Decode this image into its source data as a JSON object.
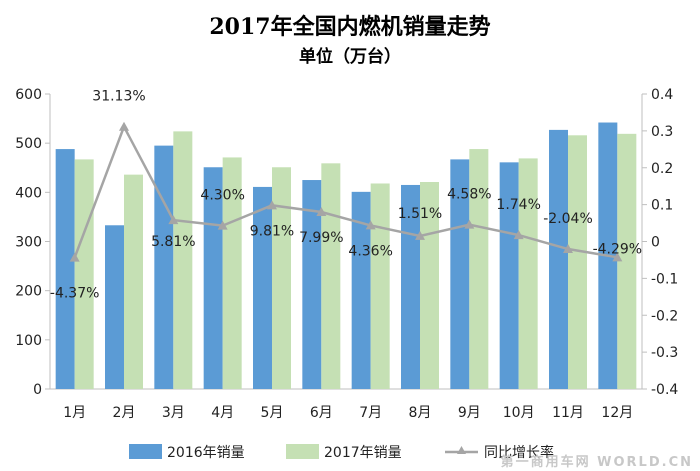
{
  "chart_data": {
    "type": "bar",
    "title": "2017年全国内燃机销量走势",
    "subtitle": "单位（万台）",
    "categories": [
      "1月",
      "2月",
      "3月",
      "4月",
      "5月",
      "6月",
      "7月",
      "8月",
      "9月",
      "10月",
      "11月",
      "12月"
    ],
    "series": [
      {
        "name": "2016年销量",
        "type": "bar",
        "color": "#5b9bd5",
        "values": [
          488,
          333,
          495,
          451,
          411,
          425,
          401,
          415,
          467,
          461,
          527,
          542
        ]
      },
      {
        "name": "2017年销量",
        "type": "bar",
        "color": "#c5e0b4",
        "values": [
          467,
          436,
          524,
          471,
          451,
          459,
          418,
          421,
          488,
          469,
          516,
          519
        ]
      },
      {
        "name": "同比增长率",
        "type": "line",
        "axis": "right",
        "color": "#a5a5a5",
        "values": [
          -0.0437,
          0.3113,
          0.0581,
          0.043,
          0.0981,
          0.0799,
          0.0436,
          0.0151,
          0.0458,
          0.0174,
          -0.0204,
          -0.0429
        ],
        "labels": [
          "-4.37%",
          "31.13%",
          "5.81%",
          "4.30%",
          "9.81%",
          "7.99%",
          "4.36%",
          "1.51%",
          "4.58%",
          "1.74%",
          "-2.04%",
          "-4.29%"
        ]
      }
    ],
    "ylim": [
      0,
      600
    ],
    "yticks": [
      "0",
      "100",
      "200",
      "300",
      "400",
      "500",
      "600"
    ],
    "y2lim": [
      -0.4,
      0.4
    ],
    "y2ticks": [
      "-0.4",
      "-0.3",
      "-0.2",
      "-0.1",
      "0",
      "0.1",
      "0.2",
      "0.3",
      "0.4"
    ],
    "legend": "bottom",
    "grid": false
  },
  "watermark": "第一商用车网 WORLD.CN"
}
